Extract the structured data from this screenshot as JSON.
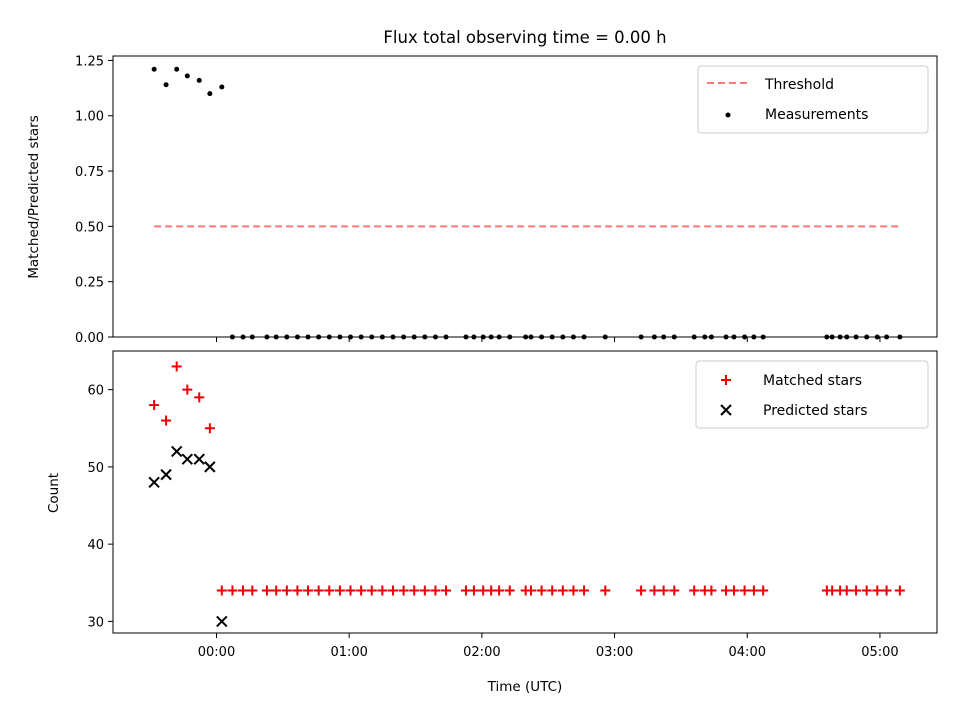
{
  "chart_data": {
    "type": "scatter",
    "title": "Flux total observing time = 0.00 h",
    "xlabel": "Time (UTC)",
    "xlim_hours": [
      -0.78,
      5.43
    ],
    "xticks": [
      {
        "h": 0,
        "label": "00:00"
      },
      {
        "h": 1,
        "label": "01:00"
      },
      {
        "h": 2,
        "label": "02:00"
      },
      {
        "h": 3,
        "label": "03:00"
      },
      {
        "h": 4,
        "label": "04:00"
      },
      {
        "h": 5,
        "label": "05:00"
      }
    ],
    "colors": {
      "threshold": "#ff7777",
      "measure": "#000000",
      "matched": "#ee0000",
      "predicted": "#000000"
    },
    "top": {
      "ylabel": "Matched/Predicted stars",
      "ylim": [
        0,
        1.27
      ],
      "yticks": [
        {
          "v": 0.0,
          "label": "0.00"
        },
        {
          "v": 0.25,
          "label": "0.25"
        },
        {
          "v": 0.5,
          "label": "0.50"
        },
        {
          "v": 0.75,
          "label": "0.75"
        },
        {
          "v": 1.0,
          "label": "1.00"
        },
        {
          "v": 1.25,
          "label": "1.25"
        }
      ],
      "threshold": {
        "value": 0.5,
        "x_range": [
          -0.47,
          5.15
        ]
      },
      "legend": {
        "threshold": "Threshold",
        "measurements": "Measurements"
      },
      "measurements": {
        "x": [
          -0.47,
          -0.38,
          -0.3,
          -0.22,
          -0.13,
          -0.05,
          0.04,
          0.12,
          0.2,
          0.27,
          0.38,
          0.45,
          0.53,
          0.61,
          0.69,
          0.77,
          0.85,
          0.93,
          1.01,
          1.09,
          1.17,
          1.25,
          1.33,
          1.41,
          1.49,
          1.57,
          1.65,
          1.73,
          1.88,
          1.94,
          2.01,
          2.07,
          2.13,
          2.21,
          2.33,
          2.37,
          2.45,
          2.53,
          2.61,
          2.69,
          2.77,
          2.93,
          3.2,
          3.3,
          3.37,
          3.45,
          3.6,
          3.68,
          3.73,
          3.84,
          3.9,
          3.98,
          4.05,
          4.12,
          4.6,
          4.64,
          4.7,
          4.75,
          4.82,
          4.9,
          4.98,
          5.05,
          5.15
        ],
        "y": [
          1.21,
          1.14,
          1.21,
          1.18,
          1.16,
          1.1,
          1.13,
          0,
          0,
          0,
          0,
          0,
          0,
          0,
          0,
          0,
          0,
          0,
          0,
          0,
          0,
          0,
          0,
          0,
          0,
          0,
          0,
          0,
          0,
          0,
          0,
          0,
          0,
          0,
          0,
          0,
          0,
          0,
          0,
          0,
          0,
          0,
          0,
          0,
          0,
          0,
          0,
          0,
          0,
          0,
          0,
          0,
          0,
          0,
          0,
          0,
          0,
          0,
          0,
          0,
          0,
          0,
          0
        ]
      }
    },
    "bottom": {
      "ylabel": "Count",
      "ylim": [
        28.5,
        65
      ],
      "yticks": [
        {
          "v": 30,
          "label": "30"
        },
        {
          "v": 40,
          "label": "40"
        },
        {
          "v": 50,
          "label": "50"
        },
        {
          "v": 60,
          "label": "60"
        }
      ],
      "legend": {
        "matched": "Matched stars",
        "predicted": "Predicted stars"
      },
      "matched": {
        "x": [
          -0.47,
          -0.38,
          -0.3,
          -0.22,
          -0.13,
          -0.05,
          0.04,
          0.12,
          0.2,
          0.27,
          0.38,
          0.45,
          0.53,
          0.61,
          0.69,
          0.77,
          0.85,
          0.93,
          1.01,
          1.09,
          1.17,
          1.25,
          1.33,
          1.41,
          1.49,
          1.57,
          1.65,
          1.73,
          1.88,
          1.94,
          2.01,
          2.07,
          2.13,
          2.21,
          2.33,
          2.37,
          2.45,
          2.53,
          2.61,
          2.69,
          2.77,
          2.93,
          3.2,
          3.3,
          3.37,
          3.45,
          3.6,
          3.68,
          3.73,
          3.84,
          3.9,
          3.98,
          4.05,
          4.12,
          4.6,
          4.64,
          4.7,
          4.75,
          4.82,
          4.9,
          4.98,
          5.05,
          5.15
        ],
        "y": [
          58,
          56,
          63,
          60,
          59,
          55,
          34,
          34,
          34,
          34,
          34,
          34,
          34,
          34,
          34,
          34,
          34,
          34,
          34,
          34,
          34,
          34,
          34,
          34,
          34,
          34,
          34,
          34,
          34,
          34,
          34,
          34,
          34,
          34,
          34,
          34,
          34,
          34,
          34,
          34,
          34,
          34,
          34,
          34,
          34,
          34,
          34,
          34,
          34,
          34,
          34,
          34,
          34,
          34,
          34,
          34,
          34,
          34,
          34,
          34,
          34,
          34,
          34
        ]
      },
      "predicted": {
        "x": [
          -0.47,
          -0.38,
          -0.3,
          -0.22,
          -0.13,
          -0.05,
          0.04
        ],
        "y": [
          48,
          49,
          52,
          51,
          51,
          50,
          30
        ]
      }
    }
  }
}
